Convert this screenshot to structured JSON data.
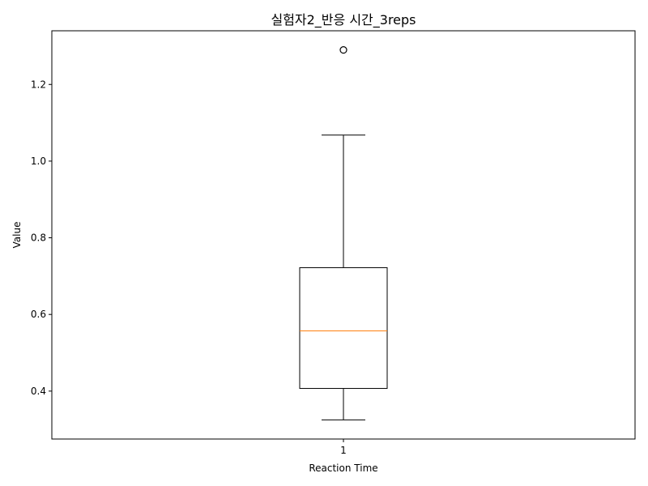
{
  "chart_data": {
    "type": "box",
    "title": "실험자2_반응 시간_3reps",
    "xlabel": "Reaction Time",
    "ylabel": "Value",
    "ylim": [
      0.275,
      1.34
    ],
    "yticks": [
      "0.4",
      "0.6",
      "0.8",
      "1.0",
      "1.2"
    ],
    "yticks_values": [
      0.4,
      0.6,
      0.8,
      1.0,
      1.2
    ],
    "categories": [
      "1"
    ],
    "boxes": [
      {
        "label": "1",
        "whisker_low": 0.325,
        "q1": 0.407,
        "median": 0.557,
        "q3": 0.722,
        "whisker_high": 1.068,
        "outliers": [
          1.29
        ]
      }
    ],
    "grid": false,
    "colors": {
      "box": "#000000",
      "median": "#ff7f0e",
      "outlier": "#000000"
    }
  }
}
